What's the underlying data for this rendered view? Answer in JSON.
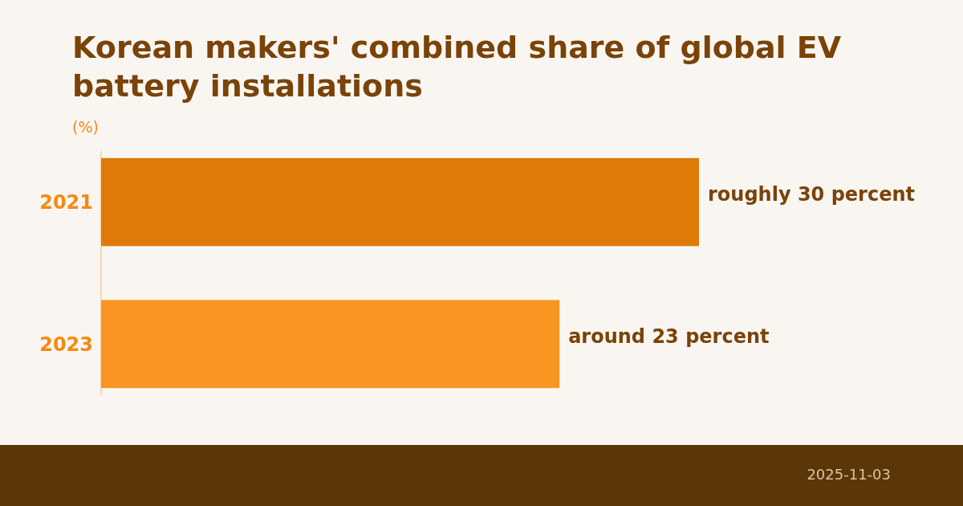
{
  "chart_data": {
    "type": "bar",
    "orientation": "horizontal",
    "title": "Korean makers' combined share of global EV battery installations",
    "xlabel": "(%)",
    "categories": [
      "2021",
      "2023"
    ],
    "values": [
      30,
      23
    ],
    "colors": [
      "#df7a06",
      "#f89420"
    ],
    "value_labels": [
      "roughly 30 percent",
      "around 23 percent"
    ],
    "annotations": [
      "2025-11-03"
    ]
  }
}
